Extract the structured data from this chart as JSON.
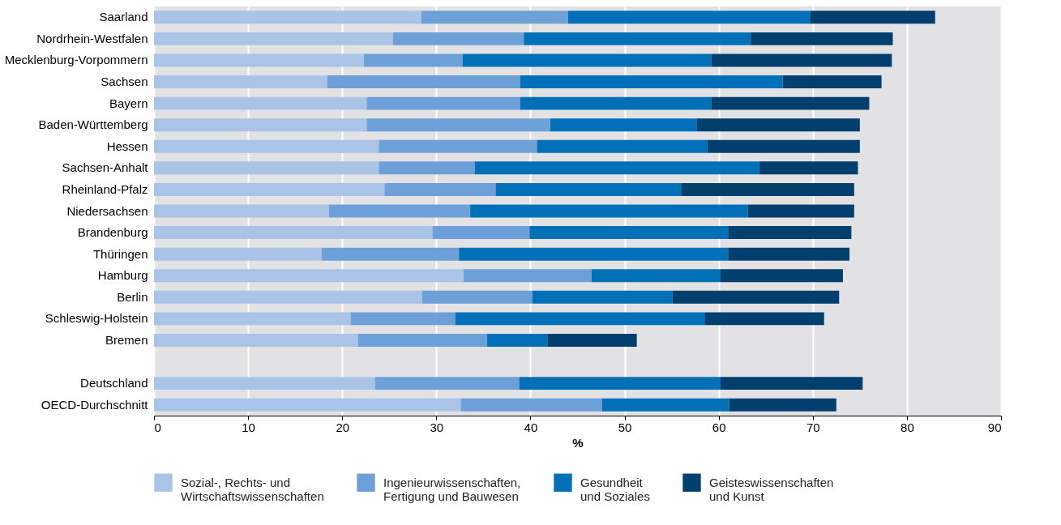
{
  "chart_data": {
    "type": "bar",
    "orientation": "horizontal",
    "stacked": true,
    "xlabel": "%",
    "xlim": [
      0,
      90
    ],
    "xticks": [
      0,
      10,
      20,
      30,
      40,
      50,
      60,
      70,
      80,
      90
    ],
    "grid": "x",
    "legend": "bottom",
    "categories": [
      "Saarland",
      "Nordrhein-Westfalen",
      "Mecklenburg-Vorpommern",
      "Sachsen",
      "Bayern",
      "Baden-Württemberg",
      "Hessen",
      "Sachsen-Anhalt",
      "Rheinland-Pfalz",
      "Niedersachsen",
      "Brandenburg",
      "Thüringen",
      "Hamburg",
      "Berlin",
      "Schleswig-Holstein",
      "Bremen",
      null,
      "Deutschland",
      "OECD-Durchschnitt"
    ],
    "series": [
      {
        "name": "Sozial-, Rechts- und Wirtschaftswissenschaften",
        "color": "#a9c4e6",
        "values": [
          28.4,
          25.4,
          22.3,
          18.4,
          22.6,
          22.6,
          23.9,
          23.9,
          24.5,
          18.6,
          29.6,
          17.8,
          32.9,
          28.5,
          20.9,
          21.7,
          null,
          23.5,
          32.6
        ]
      },
      {
        "name": "Ingenieurwissenschaften, Fertigung und Bauwesen",
        "color": "#6d9fd8",
        "values": [
          15.6,
          13.9,
          10.5,
          20.5,
          16.3,
          19.5,
          16.8,
          10.2,
          11.8,
          15.0,
          10.3,
          14.6,
          13.6,
          11.7,
          11.1,
          13.7,
          null,
          15.3,
          15.0
        ]
      },
      {
        "name": "Gesundheit und Soziales",
        "color": "#0070b8",
        "values": [
          25.7,
          24.1,
          26.4,
          27.9,
          20.3,
          15.6,
          18.1,
          30.2,
          19.7,
          29.5,
          21.1,
          28.6,
          13.7,
          14.9,
          26.5,
          6.4,
          null,
          21.4,
          13.5
        ]
      },
      {
        "name": "Geisteswissenschaften und Kunst",
        "color": "#003f6e",
        "values": [
          13.3,
          15.1,
          19.2,
          10.5,
          16.8,
          17.3,
          16.2,
          10.5,
          18.4,
          11.3,
          13.1,
          12.9,
          13.0,
          17.7,
          12.7,
          9.5,
          null,
          15.1,
          11.4
        ]
      }
    ]
  }
}
